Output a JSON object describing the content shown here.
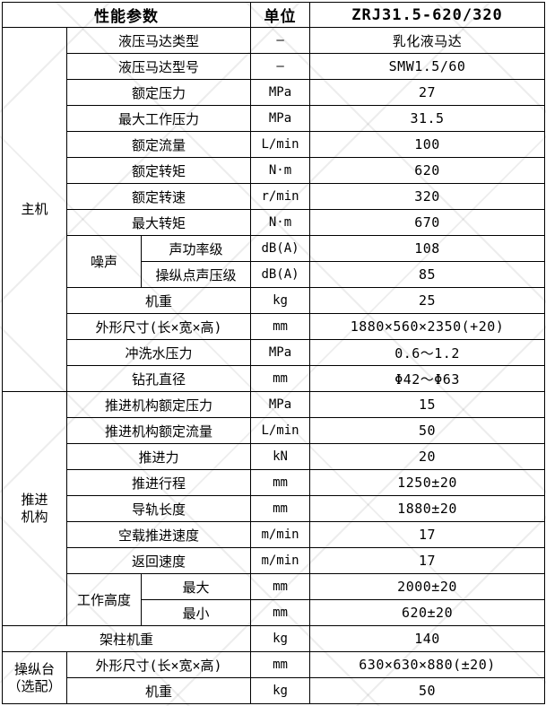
{
  "table": {
    "head": [
      {
        "t": "性能参数",
        "cs": 3
      },
      {
        "t": "单位"
      },
      {
        "t": "ZRJ31.5-620/320"
      }
    ],
    "rows": [
      [
        {
          "t": "主机",
          "rs": 14
        },
        {
          "t": "液压马达类型",
          "cs": 2
        },
        {
          "t": "—"
        },
        {
          "t": "乳化液马达"
        }
      ],
      [
        {
          "t": "液压马达型号",
          "cs": 2
        },
        {
          "t": "—"
        },
        {
          "t": "SMW1.5/60"
        }
      ],
      [
        {
          "t": "额定压力",
          "cs": 2
        },
        {
          "t": "MPa"
        },
        {
          "t": "27"
        }
      ],
      [
        {
          "t": "最大工作压力",
          "cs": 2
        },
        {
          "t": "MPa"
        },
        {
          "t": "31.5"
        }
      ],
      [
        {
          "t": "额定流量",
          "cs": 2
        },
        {
          "t": "L/min"
        },
        {
          "t": "100"
        }
      ],
      [
        {
          "t": "额定转矩",
          "cs": 2
        },
        {
          "t": "N·m"
        },
        {
          "t": "620"
        }
      ],
      [
        {
          "t": "额定转速",
          "cs": 2
        },
        {
          "t": "r/min"
        },
        {
          "t": "320"
        }
      ],
      [
        {
          "t": "最大转矩",
          "cs": 2
        },
        {
          "t": "N·m"
        },
        {
          "t": "670"
        }
      ],
      [
        {
          "t": "噪声",
          "rs": 2
        },
        {
          "t": "声功率级"
        },
        {
          "t": "dB(A)"
        },
        {
          "t": "108"
        }
      ],
      [
        {
          "t": "操纵点声压级"
        },
        {
          "t": "dB(A)"
        },
        {
          "t": "85"
        }
      ],
      [
        {
          "t": "机重",
          "cs": 2
        },
        {
          "t": "kg"
        },
        {
          "t": "25"
        }
      ],
      [
        {
          "t": "外形尺寸(长×宽×高)",
          "cs": 2
        },
        {
          "t": "mm"
        },
        {
          "t": "1880×560×2350(+20)"
        }
      ],
      [
        {
          "t": "冲洗水压力",
          "cs": 2
        },
        {
          "t": "MPa"
        },
        {
          "t": "0.6～1.2"
        }
      ],
      [
        {
          "t": "钻孔直径",
          "cs": 2
        },
        {
          "t": "mm"
        },
        {
          "t": "Φ42～Φ63"
        }
      ],
      [
        {
          "t": "推进\n机构",
          "rs": 9
        },
        {
          "t": "推进机构额定压力",
          "cs": 2
        },
        {
          "t": "MPa"
        },
        {
          "t": "15"
        }
      ],
      [
        {
          "t": "推进机构额定流量",
          "cs": 2
        },
        {
          "t": "L/min"
        },
        {
          "t": "50"
        }
      ],
      [
        {
          "t": "推进力",
          "cs": 2
        },
        {
          "t": "kN"
        },
        {
          "t": "20"
        }
      ],
      [
        {
          "t": "推进行程",
          "cs": 2
        },
        {
          "t": "mm"
        },
        {
          "t": "1250±20"
        }
      ],
      [
        {
          "t": "导轨长度",
          "cs": 2
        },
        {
          "t": "mm"
        },
        {
          "t": "1880±20"
        }
      ],
      [
        {
          "t": "空载推进速度",
          "cs": 2
        },
        {
          "t": "m/min"
        },
        {
          "t": "17"
        }
      ],
      [
        {
          "t": "返回速度",
          "cs": 2
        },
        {
          "t": "m/min"
        },
        {
          "t": "17"
        }
      ],
      [
        {
          "t": "工作高度",
          "rs": 2
        },
        {
          "t": "最大"
        },
        {
          "t": "mm"
        },
        {
          "t": "2000±20"
        }
      ],
      [
        {
          "t": "最小"
        },
        {
          "t": "mm"
        },
        {
          "t": "620±20"
        }
      ],
      [
        {
          "t": "架柱机重",
          "cs": 3
        },
        {
          "t": "kg"
        },
        {
          "t": "140"
        }
      ],
      [
        {
          "t": "操纵台\n（选配）",
          "rs": 2
        },
        {
          "t": "外形尺寸(长×宽×高)",
          "cs": 2
        },
        {
          "t": "mm"
        },
        {
          "t": "630×630×880(±20)"
        }
      ],
      [
        {
          "t": "机重",
          "cs": 2
        },
        {
          "t": "kg"
        },
        {
          "t": "50"
        }
      ]
    ]
  }
}
